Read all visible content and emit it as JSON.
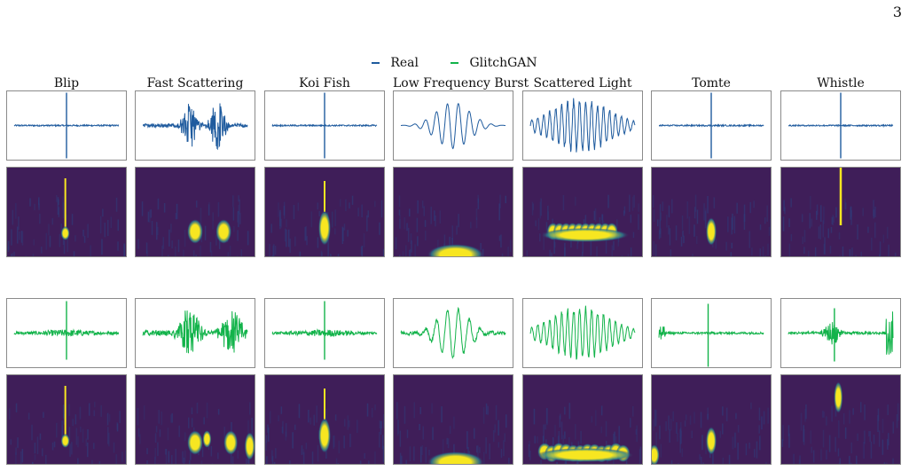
{
  "page_number": "3",
  "legend": [
    {
      "label": "Real",
      "color": "#1f5b9e"
    },
    {
      "label": "GlitchGAN",
      "color": "#12b34a"
    }
  ],
  "colors": {
    "real": "#1f5b9e",
    "gan": "#12b34a",
    "spec_bg": "#3f1e59",
    "spec_mid": "#2a7f8e",
    "spec_hot": "#f7e621"
  },
  "columns": [
    {
      "title": "Blip",
      "real_wave": "spike",
      "gan_wave": "spike_noisy",
      "real_spec": "thin_line",
      "gan_spec": "thin_line"
    },
    {
      "title": "Fast Scattering",
      "real_wave": "double_burst",
      "gan_wave": "multi_burst",
      "real_spec": "two_blobs",
      "gan_spec": "multi_blobs"
    },
    {
      "title": "Koi Fish",
      "real_wave": "spike",
      "gan_wave": "spike_noisy",
      "real_spec": "koi",
      "gan_spec": "koi"
    },
    {
      "title": "Low Frequency Burst",
      "real_wave": "chirp",
      "gan_wave": "chirp_noisy",
      "real_spec": "low_hump",
      "gan_spec": "low_hump"
    },
    {
      "title": "Scattered Light",
      "real_wave": "dense",
      "gan_wave": "dense",
      "real_spec": "band",
      "gan_spec": "band_wide"
    },
    {
      "title": "Tomte",
      "real_wave": "spike",
      "gan_wave": "spike_edge",
      "real_spec": "tomte",
      "gan_spec": "tomte_edge"
    },
    {
      "title": "Whistle",
      "real_wave": "spike",
      "gan_wave": "spike_right",
      "real_spec": "whistle",
      "gan_spec": "whistle_high"
    }
  ]
}
